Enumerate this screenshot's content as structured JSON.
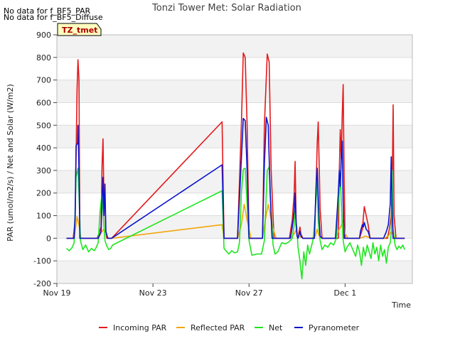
{
  "chart_data": {
    "type": "line",
    "title": "Tonzi Tower Met: Solar Radiation",
    "xlabel": "Time",
    "ylabel": "PAR (umol/m2/s) / Net and Solar (W/m2)",
    "ylim": [
      -200,
      900
    ],
    "xlim": [
      0,
      37
    ],
    "yticks": [
      -200,
      -100,
      0,
      100,
      200,
      300,
      400,
      500,
      600,
      700,
      800,
      900
    ],
    "xticks": [
      {
        "value": 0,
        "label": "Nov 19"
      },
      {
        "value": 10,
        "label": "Nov 23"
      },
      {
        "value": 20,
        "label": "Nov 27"
      },
      {
        "value": 30,
        "label": "Dec 1"
      }
    ],
    "notes": [
      "No data for f_BF5_PAR",
      "No data for f_BF5_Diffuse"
    ],
    "site_tag": "TZ_tmet",
    "series": [
      {
        "name": "Incoming PAR",
        "color": "#e31a1c",
        "x": [
          1.0,
          1.7,
          1.9,
          2.1,
          2.2,
          2.3,
          2.35,
          2.4,
          2.6,
          2.9,
          3.3,
          4.2,
          4.6,
          4.7,
          4.8,
          4.9,
          5.0,
          5.1,
          5.2,
          5.3,
          5.5,
          5.7,
          17.2,
          17.4,
          17.8,
          18.8,
          19.2,
          19.4,
          19.6,
          19.8,
          20.0,
          20.3,
          20.8,
          21.4,
          21.6,
          21.9,
          22.1,
          22.3,
          22.6,
          22.9,
          23.3,
          24.2,
          24.5,
          24.7,
          24.8,
          24.9,
          25.0,
          25.1,
          25.3,
          25.4,
          25.6,
          26.5,
          26.8,
          27.0,
          27.1,
          27.2,
          27.4,
          27.6,
          27.9,
          29.0,
          29.3,
          29.4,
          29.5,
          29.6,
          29.7,
          29.8,
          29.9,
          30.0,
          30.2,
          30.6,
          31.1,
          31.5,
          31.8,
          32.0,
          32.2,
          32.4,
          32.6,
          33.0,
          33.5,
          34.0,
          34.4,
          34.6,
          34.8,
          34.9,
          35.0,
          35.1,
          35.3,
          35.6,
          36.2
        ],
        "values": [
          0,
          0,
          80,
          660,
          790,
          700,
          280,
          0,
          0,
          0,
          0,
          0,
          50,
          320,
          440,
          160,
          170,
          20,
          0,
          0,
          0,
          0,
          515,
          0,
          0,
          0,
          500,
          820,
          800,
          500,
          0,
          0,
          0,
          0,
          500,
          815,
          780,
          300,
          0,
          0,
          0,
          0,
          80,
          200,
          340,
          80,
          30,
          0,
          50,
          20,
          0,
          0,
          0,
          260,
          420,
          515,
          130,
          0,
          0,
          0,
          0,
          300,
          480,
          350,
          550,
          680,
          250,
          0,
          0,
          0,
          0,
          0,
          40,
          140,
          100,
          60,
          0,
          0,
          0,
          0,
          0,
          40,
          100,
          200,
          590,
          100,
          0,
          0,
          0
        ]
      },
      {
        "name": "Reflected PAR",
        "color": "#f2a60c",
        "x": [
          1.0,
          1.8,
          2.1,
          2.3,
          2.5,
          2.8,
          4.3,
          4.7,
          4.9,
          5.1,
          5.3,
          5.7,
          17.2,
          17.4,
          18.8,
          19.2,
          19.5,
          19.8,
          20.2,
          21.4,
          21.7,
          22.0,
          22.4,
          22.8,
          24.3,
          24.7,
          24.9,
          25.2,
          25.6,
          26.5,
          26.9,
          27.1,
          27.3,
          27.6,
          29.0,
          29.4,
          29.6,
          29.8,
          30.0,
          30.3,
          31.5,
          31.9,
          32.1,
          32.4,
          32.8,
          34.1,
          34.5,
          34.8,
          35.0,
          35.3,
          36.2
        ],
        "values": [
          0,
          0,
          95,
          60,
          0,
          0,
          0,
          30,
          40,
          20,
          0,
          0,
          60,
          0,
          0,
          60,
          150,
          80,
          0,
          0,
          80,
          150,
          60,
          0,
          0,
          20,
          35,
          10,
          0,
          0,
          10,
          40,
          10,
          0,
          0,
          40,
          55,
          80,
          20,
          0,
          0,
          5,
          10,
          5,
          0,
          0,
          10,
          30,
          15,
          0,
          0
        ]
      },
      {
        "name": "Net",
        "color": "#1ee61e",
        "x": [
          1.0,
          1.3,
          1.6,
          1.8,
          2.0,
          2.2,
          2.3,
          2.45,
          2.7,
          3.0,
          3.3,
          3.6,
          3.9,
          4.1,
          4.3,
          4.5,
          4.7,
          4.8,
          4.9,
          5.0,
          5.2,
          5.4,
          5.6,
          5.8,
          17.2,
          17.4,
          17.6,
          17.9,
          18.2,
          18.5,
          18.8,
          19.0,
          19.2,
          19.4,
          19.6,
          19.8,
          20.0,
          20.3,
          20.8,
          21.3,
          21.6,
          21.9,
          22.1,
          22.3,
          22.5,
          22.7,
          23.0,
          23.4,
          23.8,
          24.2,
          24.5,
          24.7,
          24.8,
          25.0,
          25.1,
          25.3,
          25.5,
          25.7,
          25.9,
          26.1,
          26.3,
          26.5,
          26.7,
          26.9,
          27.1,
          27.2,
          27.4,
          27.6,
          27.9,
          28.2,
          28.5,
          28.8,
          29.1,
          29.3,
          29.5,
          29.7,
          29.8,
          30.0,
          30.2,
          30.5,
          30.8,
          31.1,
          31.3,
          31.5,
          31.7,
          31.9,
          32.1,
          32.3,
          32.5,
          32.7,
          32.9,
          33.1,
          33.3,
          33.5,
          33.7,
          33.9,
          34.1,
          34.3,
          34.5,
          34.7,
          34.8,
          34.9,
          35.0,
          35.2,
          35.4,
          35.6,
          35.8,
          36.0,
          36.2
        ],
        "values": [
          -45,
          -55,
          -40,
          -20,
          270,
          310,
          200,
          -10,
          -50,
          -30,
          -60,
          -45,
          -55,
          -40,
          -20,
          120,
          200,
          130,
          60,
          -10,
          -35,
          -50,
          -45,
          -30,
          210,
          -45,
          -55,
          -70,
          -55,
          -65,
          -60,
          -20,
          200,
          305,
          310,
          150,
          -10,
          -75,
          -70,
          -70,
          -10,
          300,
          315,
          120,
          -30,
          -70,
          -60,
          -20,
          -25,
          -15,
          0,
          60,
          120,
          30,
          -40,
          -100,
          -180,
          -60,
          -120,
          -30,
          -70,
          -35,
          0,
          120,
          250,
          80,
          -10,
          -50,
          -30,
          -40,
          -20,
          -30,
          0,
          150,
          270,
          60,
          -10,
          -60,
          -40,
          -20,
          -50,
          -80,
          -30,
          -60,
          -120,
          -40,
          -80,
          -30,
          -60,
          -90,
          -20,
          -70,
          -40,
          -100,
          -30,
          -80,
          -50,
          -110,
          -40,
          -20,
          20,
          300,
          40,
          -30,
          -50,
          -35,
          -45,
          -30,
          -50
        ]
      },
      {
        "name": "Pyranometer",
        "color": "#0b14cc",
        "x": [
          1.0,
          1.8,
          1.9,
          2.0,
          2.15,
          2.2,
          2.3,
          2.4,
          2.6,
          3.3,
          4.3,
          4.6,
          4.7,
          4.8,
          4.9,
          5.0,
          5.1,
          5.3,
          5.7,
          17.2,
          17.4,
          18.8,
          19.2,
          19.4,
          19.6,
          19.8,
          20.0,
          20.3,
          21.4,
          21.6,
          21.8,
          22.0,
          22.2,
          22.4,
          22.8,
          24.3,
          24.5,
          24.7,
          24.8,
          24.9,
          25.0,
          25.1,
          25.3,
          25.4,
          25.6,
          26.5,
          26.8,
          26.9,
          27.0,
          27.1,
          27.3,
          27.4,
          27.6,
          28.0,
          29.0,
          29.3,
          29.4,
          29.5,
          29.6,
          29.7,
          29.8,
          29.9,
          30.0,
          30.2,
          31.5,
          31.6,
          31.8,
          31.9,
          32.0,
          32.2,
          32.4,
          32.6,
          33.0,
          34.0,
          34.3,
          34.5,
          34.7,
          34.8,
          34.9,
          35.0,
          35.2,
          35.6,
          36.2
        ],
        "values": [
          0,
          0,
          100,
          410,
          420,
          500,
          300,
          0,
          0,
          0,
          0,
          30,
          170,
          270,
          100,
          240,
          30,
          0,
          0,
          325,
          0,
          0,
          350,
          530,
          520,
          300,
          0,
          0,
          0,
          330,
          535,
          500,
          200,
          0,
          0,
          0,
          50,
          120,
          200,
          60,
          10,
          0,
          30,
          10,
          0,
          0,
          0,
          130,
          250,
          310,
          80,
          10,
          0,
          0,
          0,
          200,
          300,
          230,
          350,
          430,
          150,
          0,
          0,
          0,
          0,
          30,
          60,
          50,
          70,
          40,
          30,
          0,
          0,
          0,
          30,
          60,
          150,
          360,
          100,
          0,
          0,
          0,
          0
        ]
      }
    ]
  }
}
